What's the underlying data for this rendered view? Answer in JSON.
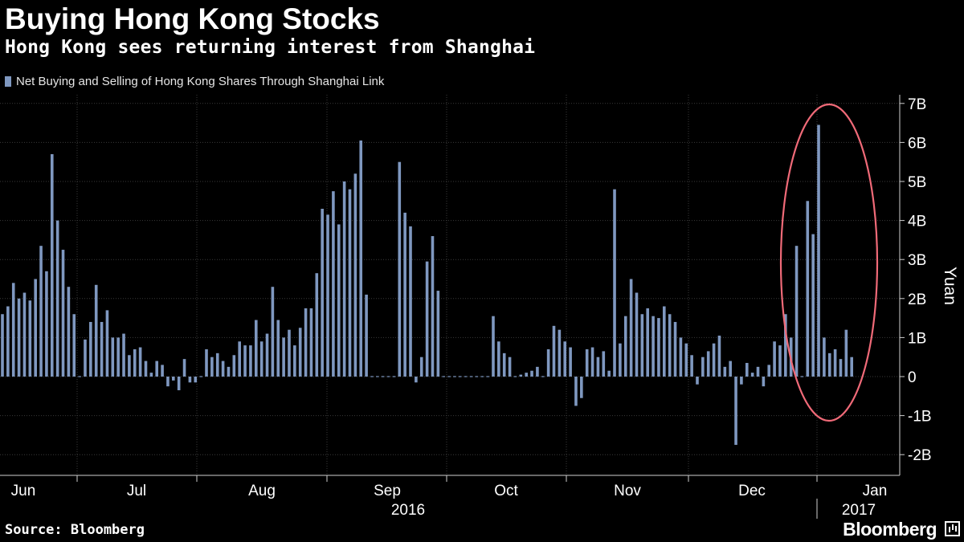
{
  "header": {
    "title": "Buying Hong Kong Stocks",
    "subtitle": "Hong Kong sees returning interest from Shanghai"
  },
  "legend": {
    "label": "Net Buying and Selling of Hong Kong Shares Through Shanghai Link"
  },
  "footer": {
    "source": "Source: Bloomberg",
    "brand": "Bloomberg"
  },
  "colors": {
    "background": "#000000",
    "bar": "#7f98c0",
    "grid": "#3a3a3a",
    "highlight": "#f06a78",
    "text": "#ffffff"
  },
  "chart_data": {
    "type": "bar",
    "title": "Buying Hong Kong Stocks",
    "subtitle": "Hong Kong sees returning interest from Shanghai",
    "series": [
      {
        "name": "Net Buying and Selling of Hong Kong Shares Through Shanghai Link",
        "values": [
          1.6,
          1.8,
          2.4,
          2.0,
          2.15,
          1.95,
          2.5,
          3.35,
          2.7,
          5.7,
          4.0,
          3.25,
          2.3,
          1.6,
          0,
          0.95,
          1.4,
          2.35,
          1.4,
          1.7,
          1.0,
          1.0,
          1.1,
          0.55,
          0.7,
          0.75,
          0.4,
          0.1,
          0.4,
          0.3,
          -0.25,
          -0.1,
          -0.35,
          0.45,
          -0.15,
          -0.15,
          0,
          0.7,
          0.5,
          0.6,
          0.4,
          0.25,
          0.55,
          0.9,
          0.8,
          0.8,
          1.45,
          0.9,
          1.1,
          2.3,
          1.45,
          1.0,
          1.2,
          0.8,
          1.25,
          1.75,
          1.75,
          2.65,
          4.3,
          4.15,
          4.75,
          3.9,
          5.0,
          4.8,
          5.2,
          6.05,
          2.1,
          0,
          0,
          0,
          0,
          0,
          5.5,
          4.2,
          3.85,
          -0.15,
          0.5,
          2.95,
          3.6,
          2.2,
          0,
          0,
          0,
          0,
          0,
          0,
          0,
          0,
          0,
          1.55,
          0.9,
          0.6,
          0.5,
          0,
          0.05,
          0.1,
          0.15,
          0.25,
          0,
          0.7,
          1.3,
          1.2,
          0.9,
          0.75,
          -0.75,
          -0.55,
          0.7,
          0.75,
          0.5,
          0.65,
          0.15,
          4.8,
          0.85,
          1.55,
          2.5,
          2.15,
          1.6,
          1.75,
          1.55,
          1.5,
          1.8,
          1.6,
          1.4,
          1.0,
          0.85,
          0.55,
          -0.2,
          0.5,
          0.65,
          0.85,
          1.05,
          0.25,
          0.4,
          -1.75,
          -0.2,
          0.35,
          0.1,
          0.25,
          -0.25,
          0.3,
          0.9,
          0.8,
          1.6,
          1.0,
          3.35,
          0,
          4.5,
          3.65,
          6.45,
          1.0,
          0.6,
          0.7,
          0.45,
          1.2,
          0.5
        ]
      }
    ],
    "x_tick_labels": [
      "Jun",
      "Jul",
      "Aug",
      "Sep",
      "Oct",
      "Nov",
      "Dec",
      "Jan"
    ],
    "year_labels": [
      "2016",
      "2017"
    ],
    "y_tick_values": [
      7,
      6,
      5,
      4,
      3,
      2,
      1,
      0,
      -1,
      -2
    ],
    "y_tick_labels": [
      "7B",
      "6B",
      "5B",
      "4B",
      "3B",
      "2B",
      "1B",
      "0",
      "-1B",
      "-2B"
    ],
    "ylabel": "Yuan",
    "ylim": [
      -2.6,
      7.2
    ],
    "grid": true,
    "y_axis_side": "right",
    "legend_position": "top-left",
    "highlight": {
      "shape": "ellipse",
      "color": "#f06a78",
      "covers": "late December 2016 to early January 2017"
    }
  }
}
